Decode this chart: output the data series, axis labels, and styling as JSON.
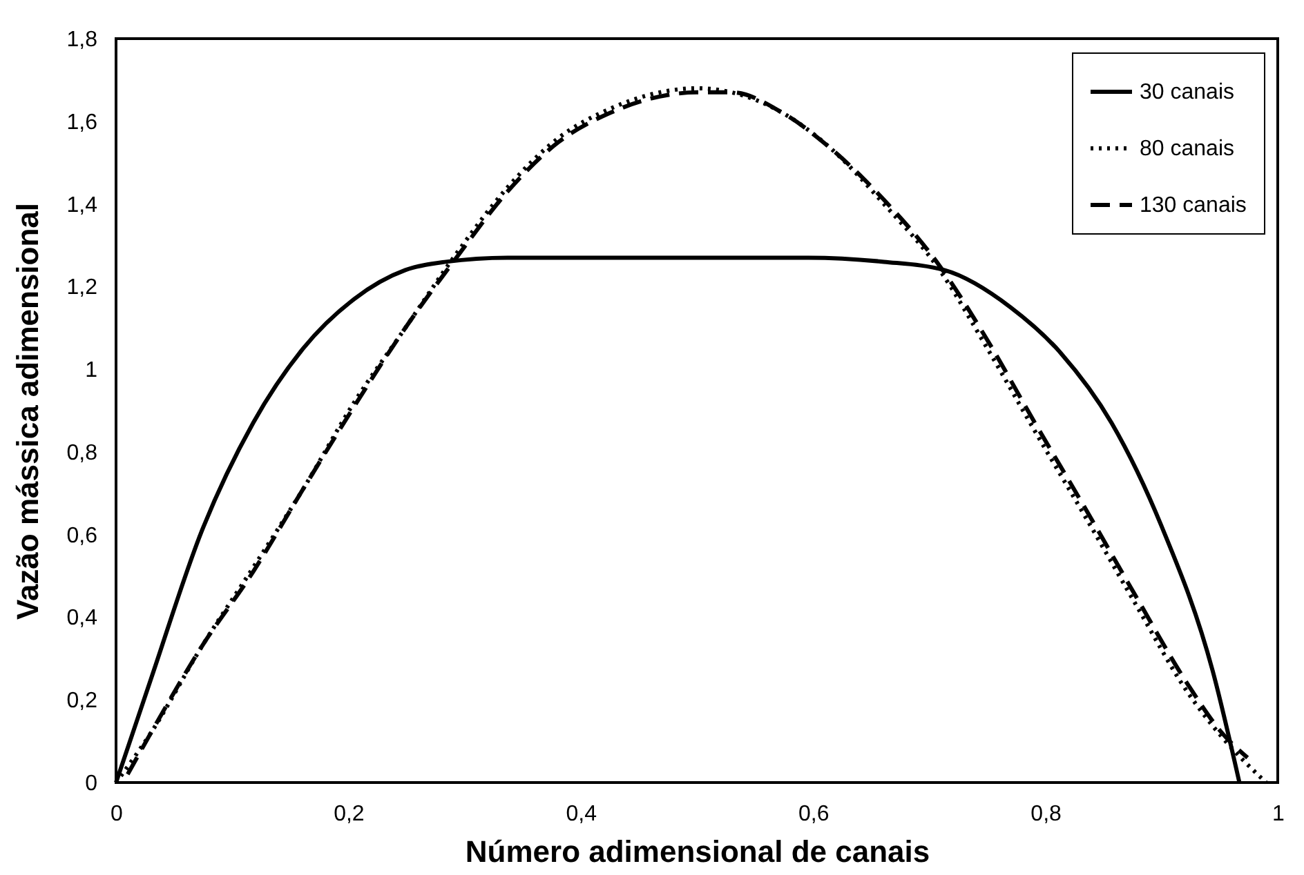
{
  "chart_data": {
    "type": "line",
    "xlabel": "Número adimensional de canais",
    "ylabel": "Vazão mássica adimensional",
    "xlim": [
      0,
      1
    ],
    "ylim": [
      0,
      1.8
    ],
    "xticks": [
      0,
      {
        "value": 0.2,
        "label": "0,2"
      },
      {
        "value": 0.4,
        "label": "0,4"
      },
      {
        "value": 0.6,
        "label": "0,6"
      },
      {
        "value": 0.8,
        "label": "0,8"
      },
      1
    ],
    "yticks": [
      0,
      {
        "value": 0.2,
        "label": "0,2"
      },
      {
        "value": 0.4,
        "label": "0,4"
      },
      {
        "value": 0.6,
        "label": "0,6"
      },
      {
        "value": 0.8,
        "label": "0,8"
      },
      1,
      {
        "value": 1.2,
        "label": "1,2"
      },
      {
        "value": 1.4,
        "label": "1,4"
      },
      {
        "value": 1.6,
        "label": "1,6"
      },
      {
        "value": 1.8,
        "label": "1,8"
      }
    ],
    "grid": false,
    "legend": "top right",
    "marker": "none",
    "series": [
      {
        "name": "30 canais",
        "color": "#000000",
        "line_style": "solid",
        "x": [
          0,
          0.03,
          0.074,
          0.118,
          0.161,
          0.205,
          0.249,
          0.284,
          0.337,
          0.425,
          0.493,
          0.596,
          0.661,
          0.713,
          0.77,
          0.813,
          0.857,
          0.9,
          0.944,
          0.967
        ],
        "values": [
          0,
          0.25,
          0.61,
          0.87,
          1.05,
          1.17,
          1.24,
          1.26,
          1.27,
          1.27,
          1.27,
          1.27,
          1.26,
          1.24,
          1.15,
          1.04,
          0.87,
          0.62,
          0.27,
          0
        ]
      },
      {
        "name": "80 canais",
        "color": "#000000",
        "line_style": "dotted",
        "x": [
          0,
          0.03,
          0.074,
          0.118,
          0.161,
          0.205,
          0.249,
          0.293,
          0.337,
          0.381,
          0.425,
          0.468,
          0.5,
          0.53,
          0.574,
          0.617,
          0.661,
          0.709,
          0.748,
          0.791,
          0.835,
          0.878,
          0.922,
          0.952,
          0.99
        ],
        "values": [
          0,
          0.12,
          0.33,
          0.52,
          0.71,
          0.92,
          1.1,
          1.28,
          1.44,
          1.56,
          1.63,
          1.67,
          1.68,
          1.67,
          1.62,
          1.53,
          1.4,
          1.24,
          1.06,
          0.85,
          0.64,
          0.43,
          0.22,
          0.11,
          0
        ]
      },
      {
        "name": "130 canais",
        "color": "#000000",
        "line_style": "dashed",
        "x": [
          0.01,
          0.03,
          0.074,
          0.118,
          0.161,
          0.205,
          0.249,
          0.293,
          0.337,
          0.381,
          0.425,
          0.468,
          0.5,
          0.53,
          0.574,
          0.617,
          0.661,
          0.709,
          0.748,
          0.791,
          0.835,
          0.878,
          0.922,
          0.952,
          0.974
        ],
        "values": [
          0.02,
          0.12,
          0.33,
          0.51,
          0.71,
          0.91,
          1.1,
          1.27,
          1.43,
          1.55,
          1.62,
          1.66,
          1.67,
          1.67,
          1.62,
          1.53,
          1.41,
          1.25,
          1.08,
          0.87,
          0.66,
          0.45,
          0.24,
          0.12,
          0.06
        ]
      }
    ]
  }
}
